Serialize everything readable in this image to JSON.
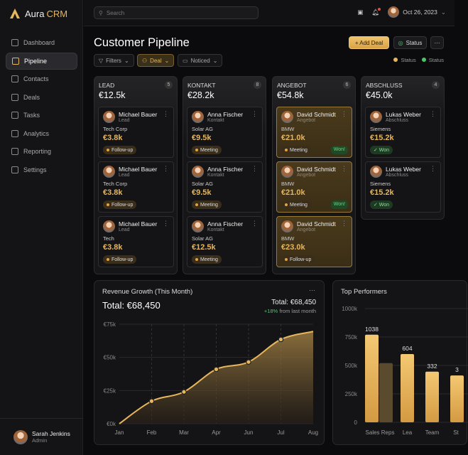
{
  "app": {
    "name": "Aura",
    "name_accent": "CRM"
  },
  "sidebar": {
    "items": [
      {
        "label": "Dashboard",
        "icon": "grid-icon"
      },
      {
        "label": "Pipeline",
        "icon": "pipeline-icon",
        "active": true
      },
      {
        "label": "Contacts",
        "icon": "users-icon"
      },
      {
        "label": "Deals",
        "icon": "tag-icon"
      },
      {
        "label": "Tasks",
        "icon": "clipboard-icon"
      },
      {
        "label": "Analytics",
        "icon": "bar-chart-icon"
      },
      {
        "label": "Reporting",
        "icon": "line-chart-icon"
      },
      {
        "label": "Settings",
        "icon": "gear-icon"
      }
    ],
    "user": {
      "name": "Sarah Jenkins",
      "role": "Admin"
    }
  },
  "topbar": {
    "search_placeholder": "Search",
    "date": "Oct 26, 2023"
  },
  "header": {
    "title": "Customer Pipeline",
    "add_deal": "+ Add Deal",
    "status": "Status",
    "more": "···"
  },
  "filters": [
    {
      "label": "Filters"
    },
    {
      "label": "Deal",
      "selected": true
    },
    {
      "label": "Noticed"
    }
  ],
  "legend": [
    {
      "label": "Status",
      "color": "#e6b65c"
    },
    {
      "label": "Status",
      "color": "#4cc46a"
    }
  ],
  "columns": [
    {
      "title": "LEAD",
      "amount": "€12.5k",
      "count": "5",
      "cards": [
        {
          "name": "Michael Bauer",
          "stage": "Lead",
          "company": "Tech Corp",
          "value": "€3.8k",
          "tag": "Follow-up"
        },
        {
          "name": "Michael Bauer",
          "stage": "Lead",
          "company": "Tech Corp",
          "value": "€3.8k",
          "tag": "Follow-up"
        },
        {
          "name": "Michael Bauer",
          "stage": "Lead",
          "company": "Tech",
          "value": "€3.8k",
          "tag": "Follow-up"
        }
      ]
    },
    {
      "title": "KONTAKT",
      "amount": "€28.2k",
      "count": "8",
      "cards": [
        {
          "name": "Anna Fischer",
          "stage": "Kontakt",
          "company": "Solar AG",
          "value": "€9.5k",
          "tag": "Meeting"
        },
        {
          "name": "Anna Fischer",
          "stage": "Kontakt",
          "company": "Solar AG",
          "value": "€9.5k",
          "tag": "Meeting"
        },
        {
          "name": "Anna Fischer",
          "stage": "Kontakt",
          "company": "Solar AG",
          "value": "€12.5k",
          "tag": "Meeting"
        }
      ]
    },
    {
      "title": "ANGEBOT",
      "amount": "€54.8k",
      "count": "6",
      "highlight": true,
      "cards": [
        {
          "name": "David Schmidt",
          "stage": "Angebot",
          "company": "BMW",
          "value": "€21.0k",
          "tag": "Meeting",
          "badge": "Won!"
        },
        {
          "name": "David Schmidt",
          "stage": "Angebot",
          "company": "BMW",
          "value": "€21.0k",
          "tag": "Meeting",
          "badge": "Won!"
        },
        {
          "name": "David Schmidt",
          "stage": "Angebot",
          "company": "BMW",
          "value": "€23.0k",
          "tag": "Follow-up"
        }
      ]
    },
    {
      "title": "ABSCHLUSS",
      "amount": "€45.0k",
      "count": "4",
      "cards": [
        {
          "name": "Lukas Weber",
          "stage": "Abschluss",
          "company": "Siemens",
          "value": "€15.2k",
          "tag": "✓ Won",
          "won": true
        },
        {
          "name": "Lukas Weber",
          "stage": "Abschluss",
          "company": "Siemens",
          "value": "€15.2k",
          "tag": "✓ Won",
          "won": true
        }
      ]
    }
  ],
  "revenue": {
    "title": "Revenue Growth (This Month)",
    "total": "Total: €68,450",
    "total_right": "Total: €68,450",
    "change": "+18%",
    "change_text": "from last month",
    "more": "···"
  },
  "performers": {
    "title": "Top Performers"
  },
  "chart_data": [
    {
      "type": "area",
      "x": [
        "Jan",
        "Feb",
        "Mar",
        "Apr",
        "Jun",
        "Jul",
        "Aug"
      ],
      "values": [
        0,
        17000,
        24000,
        41000,
        46500,
        63500,
        69500
      ],
      "yticks": [
        "€0k",
        "€25k",
        "€50k",
        "€75k"
      ],
      "ylim": [
        0,
        75000
      ],
      "grid": true,
      "color": "#e6b65c"
    },
    {
      "type": "bar",
      "categories": [
        "Sales Reps",
        "",
        "Lea",
        "Team",
        "St"
      ],
      "values": [
        770000,
        520000,
        600000,
        445000,
        412000
      ],
      "labels": [
        "1038",
        "",
        "604",
        "332",
        "3"
      ],
      "yticks": [
        "0",
        "250k",
        "500k",
        "750k",
        "1000k"
      ],
      "ylim": [
        0,
        1000000
      ],
      "grid": true,
      "color": "#e6b65c"
    }
  ]
}
